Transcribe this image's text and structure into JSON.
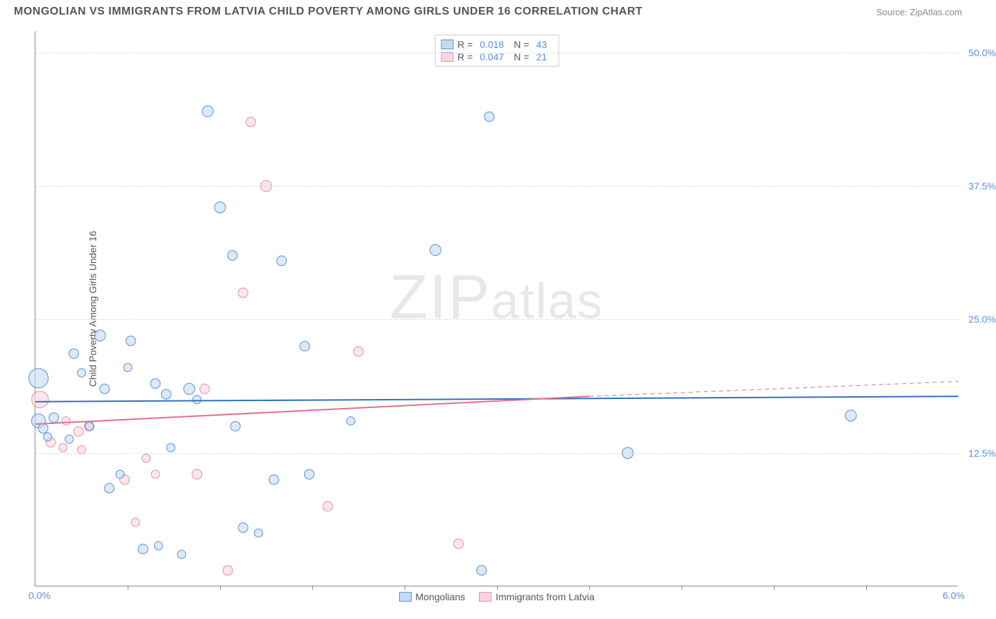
{
  "title": "MONGOLIAN VS IMMIGRANTS FROM LATVIA CHILD POVERTY AMONG GIRLS UNDER 16 CORRELATION CHART",
  "source": "Source: ZipAtlas.com",
  "watermark": "ZIPatlas",
  "y_axis_title": "Child Poverty Among Girls Under 16",
  "chart": {
    "type": "scatter",
    "xlim": [
      0.0,
      6.0
    ],
    "ylim": [
      0.0,
      52.0
    ],
    "x_min_label": "0.0%",
    "x_max_label": "6.0%",
    "x_tick_positions": [
      0.6,
      1.2,
      1.8,
      2.4,
      3.0,
      3.6,
      4.2,
      4.8,
      5.4
    ],
    "y_gridlines": [
      12.5,
      25.0,
      37.5,
      50.0
    ],
    "y_tick_labels": [
      "12.5%",
      "25.0%",
      "37.5%",
      "50.0%"
    ],
    "background_color": "#ffffff",
    "grid_color": "#dddddd",
    "series": {
      "blue": {
        "label": "Mongolians",
        "fill": "#c5dbf2",
        "stroke": "#5b8fd6",
        "fill_opacity": 0.6,
        "R": "0.018",
        "N": "43",
        "trend": {
          "y_start": 17.3,
          "y_end": 17.8,
          "solid_to_x": 6.0,
          "color": "#2f6fc0",
          "width": 2
        },
        "points": [
          {
            "x": 0.02,
            "y": 19.5,
            "r": 14
          },
          {
            "x": 0.02,
            "y": 15.5,
            "r": 10
          },
          {
            "x": 0.05,
            "y": 14.8,
            "r": 7
          },
          {
            "x": 0.08,
            "y": 14.0,
            "r": 6
          },
          {
            "x": 0.12,
            "y": 15.8,
            "r": 7
          },
          {
            "x": 0.22,
            "y": 13.8,
            "r": 6
          },
          {
            "x": 0.25,
            "y": 21.8,
            "r": 7
          },
          {
            "x": 0.3,
            "y": 20.0,
            "r": 6
          },
          {
            "x": 0.35,
            "y": 15.0,
            "r": 6
          },
          {
            "x": 0.42,
            "y": 23.5,
            "r": 8
          },
          {
            "x": 0.45,
            "y": 18.5,
            "r": 7
          },
          {
            "x": 0.48,
            "y": 9.2,
            "r": 7
          },
          {
            "x": 0.55,
            "y": 10.5,
            "r": 6
          },
          {
            "x": 0.6,
            "y": 20.5,
            "r": 6
          },
          {
            "x": 0.62,
            "y": 23.0,
            "r": 7
          },
          {
            "x": 0.7,
            "y": 3.5,
            "r": 7
          },
          {
            "x": 0.78,
            "y": 19.0,
            "r": 7
          },
          {
            "x": 0.8,
            "y": 3.8,
            "r": 6
          },
          {
            "x": 0.85,
            "y": 18.0,
            "r": 7
          },
          {
            "x": 0.88,
            "y": 13.0,
            "r": 6
          },
          {
            "x": 0.95,
            "y": 3.0,
            "r": 6
          },
          {
            "x": 1.0,
            "y": 18.5,
            "r": 8
          },
          {
            "x": 1.05,
            "y": 17.5,
            "r": 6
          },
          {
            "x": 1.12,
            "y": 44.5,
            "r": 8
          },
          {
            "x": 1.2,
            "y": 35.5,
            "r": 8
          },
          {
            "x": 1.28,
            "y": 31.0,
            "r": 7
          },
          {
            "x": 1.3,
            "y": 15.0,
            "r": 7
          },
          {
            "x": 1.35,
            "y": 5.5,
            "r": 7
          },
          {
            "x": 1.45,
            "y": 5.0,
            "r": 6
          },
          {
            "x": 1.55,
            "y": 10.0,
            "r": 7
          },
          {
            "x": 1.6,
            "y": 30.5,
            "r": 7
          },
          {
            "x": 1.75,
            "y": 22.5,
            "r": 7
          },
          {
            "x": 1.78,
            "y": 10.5,
            "r": 7
          },
          {
            "x": 2.05,
            "y": 15.5,
            "r": 6
          },
          {
            "x": 2.6,
            "y": 31.5,
            "r": 8
          },
          {
            "x": 2.9,
            "y": 1.5,
            "r": 7
          },
          {
            "x": 2.95,
            "y": 44.0,
            "r": 7
          },
          {
            "x": 3.85,
            "y": 12.5,
            "r": 8
          },
          {
            "x": 5.3,
            "y": 16.0,
            "r": 8
          }
        ]
      },
      "pink": {
        "label": "Immigrants from Latvia",
        "fill": "#f8d6df",
        "stroke": "#e58fa6",
        "fill_opacity": 0.6,
        "R": "0.047",
        "N": "21",
        "trend": {
          "y_start": 15.2,
          "y_end_solid": 17.8,
          "solid_to_x": 3.6,
          "y_end_dash": 19.2,
          "color": "#e06f8c",
          "width": 2
        },
        "points": [
          {
            "x": 0.03,
            "y": 17.5,
            "r": 12
          },
          {
            "x": 0.1,
            "y": 13.5,
            "r": 7
          },
          {
            "x": 0.18,
            "y": 13.0,
            "r": 6
          },
          {
            "x": 0.2,
            "y": 15.5,
            "r": 6
          },
          {
            "x": 0.28,
            "y": 14.5,
            "r": 7
          },
          {
            "x": 0.3,
            "y": 12.8,
            "r": 6
          },
          {
            "x": 0.35,
            "y": 15.0,
            "r": 7
          },
          {
            "x": 0.58,
            "y": 10.0,
            "r": 7
          },
          {
            "x": 0.65,
            "y": 6.0,
            "r": 6
          },
          {
            "x": 0.72,
            "y": 12.0,
            "r": 6
          },
          {
            "x": 0.78,
            "y": 10.5,
            "r": 6
          },
          {
            "x": 1.05,
            "y": 10.5,
            "r": 7
          },
          {
            "x": 1.1,
            "y": 18.5,
            "r": 7
          },
          {
            "x": 1.25,
            "y": 1.5,
            "r": 7
          },
          {
            "x": 1.35,
            "y": 27.5,
            "r": 7
          },
          {
            "x": 1.4,
            "y": 43.5,
            "r": 7
          },
          {
            "x": 1.5,
            "y": 37.5,
            "r": 8
          },
          {
            "x": 1.9,
            "y": 7.5,
            "r": 7
          },
          {
            "x": 2.1,
            "y": 22.0,
            "r": 7
          },
          {
            "x": 2.75,
            "y": 4.0,
            "r": 7
          }
        ]
      }
    }
  },
  "legend_bottom": {
    "blue_label": "Mongolians",
    "pink_label": "Immigrants from Latvia"
  },
  "stats_legend": {
    "r_sym": "R =",
    "n_sym": "N ="
  }
}
